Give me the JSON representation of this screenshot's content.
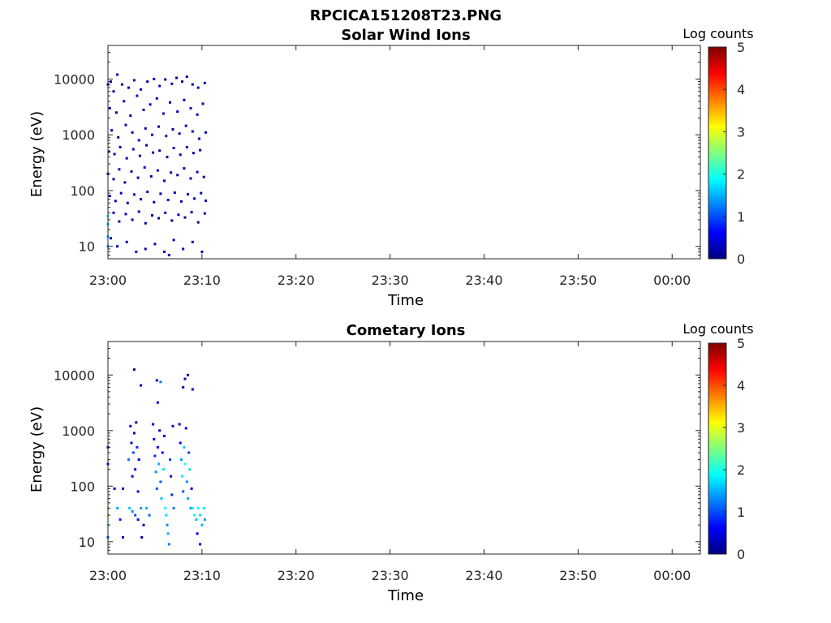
{
  "figure": {
    "title": "RPCICA151208T23.PNG"
  },
  "colors": {
    "axis": "#262626",
    "background": "#ffffff",
    "jet": [
      "#00007f",
      "#0000ff",
      "#007fff",
      "#00ffff",
      "#7fff7f",
      "#ffff00",
      "#ff7f00",
      "#ff0000",
      "#7f0000"
    ]
  },
  "chart_data": [
    {
      "type": "heatmap",
      "title": "Solar Wind Ions",
      "xlabel": "Time",
      "ylabel": "Energy (eV)",
      "xticks": [
        "23:00",
        "23:10",
        "23:20",
        "23:30",
        "23:40",
        "23:50",
        "00:00"
      ],
      "yticks": [
        "10",
        "100",
        "1000",
        "10000"
      ],
      "yscale": "log",
      "ylim": [
        6,
        40000
      ],
      "xlim": [
        "23:00",
        "00:03"
      ],
      "colorbar": {
        "label": "Log counts",
        "ticks": [
          "0",
          "1",
          "2",
          "3",
          "4",
          "5"
        ],
        "range": [
          0,
          5
        ],
        "colormap": "jet"
      },
      "data_extent": {
        "time_start": "23:00",
        "time_end": "23:10"
      },
      "cells": [
        {
          "t": 0.0,
          "e": 8000,
          "v": 0.3
        },
        {
          "t": 0.3,
          "e": 9000,
          "v": 0.2
        },
        {
          "t": 0.6,
          "e": 6000,
          "v": 0.3
        },
        {
          "t": 1.0,
          "e": 12000,
          "v": 0.2
        },
        {
          "t": 1.5,
          "e": 8000,
          "v": 0.3
        },
        {
          "t": 2.2,
          "e": 7000,
          "v": 0.2
        },
        {
          "t": 2.8,
          "e": 9500,
          "v": 0.3
        },
        {
          "t": 3.5,
          "e": 6500,
          "v": 0.2
        },
        {
          "t": 4.2,
          "e": 9000,
          "v": 0.3
        },
        {
          "t": 4.9,
          "e": 10000,
          "v": 0.2
        },
        {
          "t": 5.5,
          "e": 7500,
          "v": 0.3
        },
        {
          "t": 6.1,
          "e": 9800,
          "v": 0.2
        },
        {
          "t": 6.8,
          "e": 8200,
          "v": 0.3
        },
        {
          "t": 7.3,
          "e": 10500,
          "v": 0.2
        },
        {
          "t": 7.9,
          "e": 9000,
          "v": 0.3
        },
        {
          "t": 8.4,
          "e": 11000,
          "v": 0.2
        },
        {
          "t": 9.0,
          "e": 8000,
          "v": 0.3
        },
        {
          "t": 9.6,
          "e": 7000,
          "v": 0.2
        },
        {
          "t": 10.3,
          "e": 8500,
          "v": 0.3
        },
        {
          "t": 0.2,
          "e": 3000,
          "v": 0.3
        },
        {
          "t": 0.9,
          "e": 2500,
          "v": 0.2
        },
        {
          "t": 1.7,
          "e": 4000,
          "v": 0.3
        },
        {
          "t": 2.4,
          "e": 2200,
          "v": 0.2
        },
        {
          "t": 3.1,
          "e": 5000,
          "v": 0.3
        },
        {
          "t": 3.8,
          "e": 2800,
          "v": 0.2
        },
        {
          "t": 4.5,
          "e": 3500,
          "v": 0.3
        },
        {
          "t": 5.2,
          "e": 4500,
          "v": 0.2
        },
        {
          "t": 5.9,
          "e": 2400,
          "v": 0.3
        },
        {
          "t": 6.6,
          "e": 3800,
          "v": 0.2
        },
        {
          "t": 7.4,
          "e": 2600,
          "v": 0.3
        },
        {
          "t": 8.1,
          "e": 4200,
          "v": 0.2
        },
        {
          "t": 8.8,
          "e": 3000,
          "v": 0.3
        },
        {
          "t": 9.5,
          "e": 2300,
          "v": 0.2
        },
        {
          "t": 10.1,
          "e": 3600,
          "v": 0.3
        },
        {
          "t": 0.4,
          "e": 1200,
          "v": 0.3
        },
        {
          "t": 1.1,
          "e": 900,
          "v": 0.2
        },
        {
          "t": 1.9,
          "e": 1500,
          "v": 0.3
        },
        {
          "t": 2.6,
          "e": 1100,
          "v": 0.2
        },
        {
          "t": 3.3,
          "e": 800,
          "v": 0.3
        },
        {
          "t": 4.0,
          "e": 1300,
          "v": 0.2
        },
        {
          "t": 4.7,
          "e": 1000,
          "v": 0.3
        },
        {
          "t": 5.4,
          "e": 1400,
          "v": 0.2
        },
        {
          "t": 6.2,
          "e": 950,
          "v": 0.3
        },
        {
          "t": 6.9,
          "e": 1250,
          "v": 0.2
        },
        {
          "t": 7.6,
          "e": 1050,
          "v": 0.3
        },
        {
          "t": 8.3,
          "e": 1450,
          "v": 0.2
        },
        {
          "t": 9.0,
          "e": 1150,
          "v": 0.3
        },
        {
          "t": 9.7,
          "e": 850,
          "v": 0.2
        },
        {
          "t": 10.4,
          "e": 1100,
          "v": 0.3
        },
        {
          "t": 0.1,
          "e": 500,
          "v": 0.3
        },
        {
          "t": 0.7,
          "e": 450,
          "v": 0.2
        },
        {
          "t": 1.3,
          "e": 600,
          "v": 0.3
        },
        {
          "t": 2.0,
          "e": 380,
          "v": 0.2
        },
        {
          "t": 2.7,
          "e": 550,
          "v": 0.3
        },
        {
          "t": 3.4,
          "e": 420,
          "v": 0.2
        },
        {
          "t": 4.1,
          "e": 650,
          "v": 0.3
        },
        {
          "t": 4.8,
          "e": 480,
          "v": 0.2
        },
        {
          "t": 5.5,
          "e": 520,
          "v": 0.3
        },
        {
          "t": 6.3,
          "e": 400,
          "v": 0.2
        },
        {
          "t": 7.0,
          "e": 580,
          "v": 0.3
        },
        {
          "t": 7.7,
          "e": 440,
          "v": 0.2
        },
        {
          "t": 8.4,
          "e": 600,
          "v": 0.3
        },
        {
          "t": 9.1,
          "e": 470,
          "v": 0.2
        },
        {
          "t": 9.8,
          "e": 530,
          "v": 0.3
        },
        {
          "t": 0.0,
          "e": 200,
          "v": 0.3
        },
        {
          "t": 0.6,
          "e": 160,
          "v": 0.2
        },
        {
          "t": 1.2,
          "e": 240,
          "v": 0.3
        },
        {
          "t": 1.8,
          "e": 140,
          "v": 0.2
        },
        {
          "t": 2.5,
          "e": 220,
          "v": 0.3
        },
        {
          "t": 3.2,
          "e": 170,
          "v": 0.2
        },
        {
          "t": 3.9,
          "e": 260,
          "v": 0.5
        },
        {
          "t": 4.6,
          "e": 180,
          "v": 0.2
        },
        {
          "t": 5.3,
          "e": 230,
          "v": 0.3
        },
        {
          "t": 6.0,
          "e": 150,
          "v": 0.2
        },
        {
          "t": 6.7,
          "e": 210,
          "v": 0.3
        },
        {
          "t": 7.4,
          "e": 190,
          "v": 0.2
        },
        {
          "t": 8.1,
          "e": 250,
          "v": 0.3
        },
        {
          "t": 8.8,
          "e": 165,
          "v": 0.2
        },
        {
          "t": 9.5,
          "e": 215,
          "v": 0.3
        },
        {
          "t": 10.2,
          "e": 175,
          "v": 0.2
        },
        {
          "t": 0.2,
          "e": 80,
          "v": 0.3
        },
        {
          "t": 0.8,
          "e": 65,
          "v": 0.2
        },
        {
          "t": 1.4,
          "e": 90,
          "v": 0.3
        },
        {
          "t": 2.1,
          "e": 60,
          "v": 0.2
        },
        {
          "t": 2.8,
          "e": 85,
          "v": 0.3
        },
        {
          "t": 3.5,
          "e": 70,
          "v": 0.2
        },
        {
          "t": 4.2,
          "e": 95,
          "v": 0.3
        },
        {
          "t": 4.9,
          "e": 62,
          "v": 0.2
        },
        {
          "t": 5.6,
          "e": 88,
          "v": 0.3
        },
        {
          "t": 6.4,
          "e": 68,
          "v": 0.2
        },
        {
          "t": 7.1,
          "e": 92,
          "v": 0.3
        },
        {
          "t": 7.8,
          "e": 64,
          "v": 0.2
        },
        {
          "t": 8.5,
          "e": 86,
          "v": 0.3
        },
        {
          "t": 9.2,
          "e": 72,
          "v": 0.2
        },
        {
          "t": 9.9,
          "e": 90,
          "v": 0.3
        },
        {
          "t": 10.4,
          "e": 66,
          "v": 0.2
        },
        {
          "t": 0.0,
          "e": 35,
          "v": 1.8
        },
        {
          "t": 0.0,
          "e": 25,
          "v": 1.5
        },
        {
          "t": 0.0,
          "e": 15,
          "v": 1.6
        },
        {
          "t": 0.0,
          "e": 10,
          "v": 1.4
        },
        {
          "t": 0.6,
          "e": 40,
          "v": 0.3
        },
        {
          "t": 1.2,
          "e": 28,
          "v": 0.2
        },
        {
          "t": 1.9,
          "e": 38,
          "v": 0.3
        },
        {
          "t": 2.6,
          "e": 30,
          "v": 0.2
        },
        {
          "t": 3.3,
          "e": 42,
          "v": 0.3
        },
        {
          "t": 4.0,
          "e": 26,
          "v": 0.2
        },
        {
          "t": 4.7,
          "e": 36,
          "v": 0.3
        },
        {
          "t": 5.4,
          "e": 32,
          "v": 0.2
        },
        {
          "t": 6.1,
          "e": 40,
          "v": 0.3
        },
        {
          "t": 6.8,
          "e": 29,
          "v": 0.2
        },
        {
          "t": 7.5,
          "e": 37,
          "v": 0.3
        },
        {
          "t": 8.2,
          "e": 33,
          "v": 0.2
        },
        {
          "t": 8.9,
          "e": 41,
          "v": 0.3
        },
        {
          "t": 9.6,
          "e": 27,
          "v": 0.2
        },
        {
          "t": 10.3,
          "e": 39,
          "v": 0.3
        },
        {
          "t": 0.3,
          "e": 14,
          "v": 0.3
        },
        {
          "t": 1.0,
          "e": 10,
          "v": 0.3
        },
        {
          "t": 2.0,
          "e": 12,
          "v": 0.2
        },
        {
          "t": 3.0,
          "e": 8,
          "v": 0.3
        },
        {
          "t": 4.0,
          "e": 9,
          "v": 0.3
        },
        {
          "t": 5.0,
          "e": 11,
          "v": 0.2
        },
        {
          "t": 6.0,
          "e": 8,
          "v": 0.3
        },
        {
          "t": 6.5,
          "e": 7,
          "v": 0.3
        },
        {
          "t": 7.0,
          "e": 13,
          "v": 0.2
        },
        {
          "t": 8.0,
          "e": 9,
          "v": 0.3
        },
        {
          "t": 9.0,
          "e": 12,
          "v": 0.3
        },
        {
          "t": 10.0,
          "e": 8,
          "v": 0.2
        }
      ]
    },
    {
      "type": "heatmap",
      "title": "Cometary Ions",
      "xlabel": "Time",
      "ylabel": "Energy (eV)",
      "xticks": [
        "23:00",
        "23:10",
        "23:20",
        "23:30",
        "23:40",
        "23:50",
        "00:00"
      ],
      "yticks": [
        "10",
        "100",
        "1000",
        "10000"
      ],
      "yscale": "log",
      "ylim": [
        6,
        40000
      ],
      "xlim": [
        "23:00",
        "00:03"
      ],
      "colorbar": {
        "label": "Log counts",
        "ticks": [
          "0",
          "1",
          "2",
          "3",
          "4",
          "5"
        ],
        "range": [
          0,
          5
        ],
        "colormap": "jet"
      },
      "data_extent": {
        "time_start": "23:00",
        "time_end": "23:10"
      },
      "cells": [
        {
          "t": 2.8,
          "e": 12500,
          "v": 0.3
        },
        {
          "t": 3.5,
          "e": 6500,
          "v": 0.2
        },
        {
          "t": 5.2,
          "e": 8000,
          "v": 0.3
        },
        {
          "t": 5.6,
          "e": 7500,
          "v": 1.2
        },
        {
          "t": 5.3,
          "e": 3200,
          "v": 0.3
        },
        {
          "t": 8.2,
          "e": 8500,
          "v": 0.3
        },
        {
          "t": 8.5,
          "e": 10000,
          "v": 0.2
        },
        {
          "t": 8.0,
          "e": 6000,
          "v": 0.3
        },
        {
          "t": 9.0,
          "e": 5500,
          "v": 0.3
        },
        {
          "t": 0.0,
          "e": 500,
          "v": 0.3
        },
        {
          "t": 0.0,
          "e": 250,
          "v": 0.5
        },
        {
          "t": 0.0,
          "e": 40,
          "v": 2.6
        },
        {
          "t": 0.0,
          "e": 30,
          "v": 2.8
        },
        {
          "t": 0.0,
          "e": 20,
          "v": 2.3
        },
        {
          "t": 0.0,
          "e": 12,
          "v": 1.0
        },
        {
          "t": 0.7,
          "e": 90,
          "v": 0.3
        },
        {
          "t": 1.0,
          "e": 40,
          "v": 1.5
        },
        {
          "t": 1.3,
          "e": 25,
          "v": 0.8
        },
        {
          "t": 1.6,
          "e": 90,
          "v": 0.4
        },
        {
          "t": 1.6,
          "e": 12,
          "v": 0.3
        },
        {
          "t": 2.2,
          "e": 300,
          "v": 1.2
        },
        {
          "t": 2.4,
          "e": 1200,
          "v": 0.3
        },
        {
          "t": 2.5,
          "e": 600,
          "v": 0.4
        },
        {
          "t": 2.6,
          "e": 150,
          "v": 0.6
        },
        {
          "t": 2.7,
          "e": 400,
          "v": 1.0
        },
        {
          "t": 2.8,
          "e": 900,
          "v": 0.3
        },
        {
          "t": 2.9,
          "e": 200,
          "v": 0.5
        },
        {
          "t": 3.0,
          "e": 1400,
          "v": 0.3
        },
        {
          "t": 3.1,
          "e": 500,
          "v": 0.8
        },
        {
          "t": 3.2,
          "e": 80,
          "v": 0.6
        },
        {
          "t": 3.3,
          "e": 300,
          "v": 0.4
        },
        {
          "t": 2.3,
          "e": 40,
          "v": 1.6
        },
        {
          "t": 2.6,
          "e": 35,
          "v": 1.3
        },
        {
          "t": 2.9,
          "e": 30,
          "v": 1.0
        },
        {
          "t": 3.2,
          "e": 25,
          "v": 0.7
        },
        {
          "t": 3.5,
          "e": 40,
          "v": 1.4
        },
        {
          "t": 3.8,
          "e": 20,
          "v": 0.4
        },
        {
          "t": 3.6,
          "e": 12,
          "v": 0.3
        },
        {
          "t": 4.1,
          "e": 40,
          "v": 1.5
        },
        {
          "t": 4.4,
          "e": 30,
          "v": 1.1
        },
        {
          "t": 4.8,
          "e": 1300,
          "v": 0.3
        },
        {
          "t": 4.9,
          "e": 700,
          "v": 0.5
        },
        {
          "t": 5.0,
          "e": 350,
          "v": 0.8
        },
        {
          "t": 5.1,
          "e": 180,
          "v": 1.3
        },
        {
          "t": 5.2,
          "e": 90,
          "v": 1.0
        },
        {
          "t": 5.3,
          "e": 500,
          "v": 0.5
        },
        {
          "t": 5.4,
          "e": 250,
          "v": 1.5
        },
        {
          "t": 5.5,
          "e": 1000,
          "v": 0.3
        },
        {
          "t": 5.6,
          "e": 120,
          "v": 1.1
        },
        {
          "t": 5.7,
          "e": 60,
          "v": 1.6
        },
        {
          "t": 5.8,
          "e": 400,
          "v": 0.6
        },
        {
          "t": 5.9,
          "e": 200,
          "v": 1.8
        },
        {
          "t": 6.0,
          "e": 800,
          "v": 0.4
        },
        {
          "t": 6.1,
          "e": 40,
          "v": 1.9
        },
        {
          "t": 6.2,
          "e": 30,
          "v": 1.7
        },
        {
          "t": 6.3,
          "e": 20,
          "v": 1.3
        },
        {
          "t": 6.4,
          "e": 14,
          "v": 1.5
        },
        {
          "t": 6.5,
          "e": 9,
          "v": 1.2
        },
        {
          "t": 6.6,
          "e": 300,
          "v": 1.0
        },
        {
          "t": 6.7,
          "e": 150,
          "v": 0.7
        },
        {
          "t": 6.8,
          "e": 70,
          "v": 0.8
        },
        {
          "t": 6.9,
          "e": 1200,
          "v": 0.3
        },
        {
          "t": 7.0,
          "e": 40,
          "v": 1.2
        },
        {
          "t": 7.6,
          "e": 1300,
          "v": 0.3
        },
        {
          "t": 7.7,
          "e": 600,
          "v": 0.6
        },
        {
          "t": 7.8,
          "e": 300,
          "v": 1.4
        },
        {
          "t": 7.9,
          "e": 150,
          "v": 1.8
        },
        {
          "t": 8.0,
          "e": 80,
          "v": 1.0
        },
        {
          "t": 8.1,
          "e": 500,
          "v": 1.6
        },
        {
          "t": 8.2,
          "e": 250,
          "v": 2.0
        },
        {
          "t": 8.3,
          "e": 1100,
          "v": 0.4
        },
        {
          "t": 8.4,
          "e": 120,
          "v": 1.3
        },
        {
          "t": 8.5,
          "e": 60,
          "v": 1.5
        },
        {
          "t": 8.6,
          "e": 400,
          "v": 0.9
        },
        {
          "t": 8.7,
          "e": 200,
          "v": 1.7
        },
        {
          "t": 8.8,
          "e": 40,
          "v": 1.4
        },
        {
          "t": 8.9,
          "e": 90,
          "v": 0.6
        },
        {
          "t": 9.0,
          "e": 40,
          "v": 1.8
        },
        {
          "t": 9.2,
          "e": 30,
          "v": 2.0
        },
        {
          "t": 9.4,
          "e": 25,
          "v": 1.6
        },
        {
          "t": 9.6,
          "e": 40,
          "v": 1.9
        },
        {
          "t": 9.8,
          "e": 30,
          "v": 1.7
        },
        {
          "t": 10.0,
          "e": 20,
          "v": 1.5
        },
        {
          "t": 10.2,
          "e": 40,
          "v": 1.8
        },
        {
          "t": 10.3,
          "e": 25,
          "v": 1.4
        },
        {
          "t": 9.5,
          "e": 14,
          "v": 0.5
        },
        {
          "t": 9.8,
          "e": 9,
          "v": 0.4
        }
      ]
    }
  ]
}
